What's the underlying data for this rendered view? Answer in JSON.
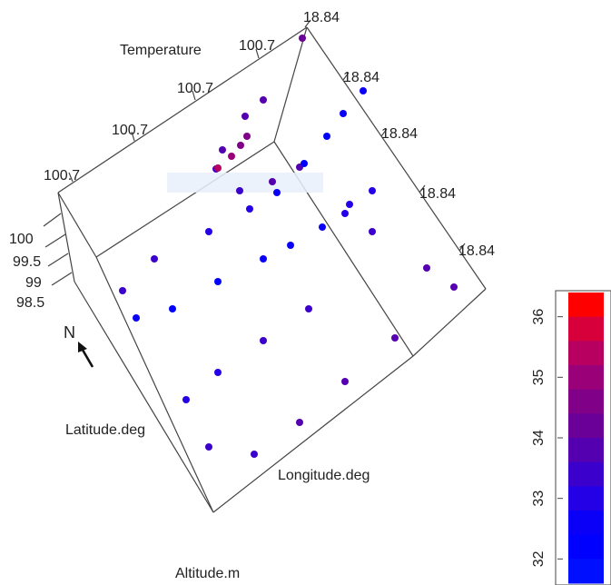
{
  "chart_data": {
    "type": "scatter",
    "title": "",
    "variables": {
      "color": "Temperature",
      "axes": [
        "Latitude.deg",
        "Longitude.deg",
        "Altitude.m"
      ]
    },
    "axis_labels": {
      "temperature": "Temperature",
      "latitude": "Latitude.deg",
      "longitude": "Longitude.deg",
      "altitude": "Altitude.m"
    },
    "temperature_ticks": [
      "100.7",
      "100.7",
      "100.7",
      "100.7"
    ],
    "longitude_ticks": [
      "18.84",
      "18.84",
      "18.84",
      "18.84",
      "18.84"
    ],
    "altitude_ticks": [
      "100",
      "99.5",
      "99",
      "98.5"
    ],
    "north_label": "N",
    "colorbar": {
      "ticks": [
        "36",
        "35",
        "34",
        "33",
        "32"
      ],
      "range": [
        31.6,
        36.4
      ],
      "colors": [
        "#ff0000",
        "#d8003a",
        "#b80060",
        "#9a0078",
        "#800088",
        "#6a0098",
        "#5500b0",
        "#3c00cc",
        "#2400e6",
        "#0a00f8",
        "#0000ff",
        "#0010ff"
      ]
    },
    "series": [
      {
        "values": [
          34.2,
          34.0,
          33.9,
          33.8,
          33.5,
          33.2,
          33.6,
          34.0
        ]
      },
      {
        "values": [
          33.4,
          33.2,
          33.0,
          32.8,
          32.5,
          32.2,
          32.1,
          32.3,
          32.6,
          33.0,
          33.5,
          34.0
        ]
      },
      {
        "values": [
          32.3,
          32.2,
          32.2,
          32.3,
          32.4,
          32.6,
          32.8,
          33.0
        ]
      },
      {
        "values": [
          35.7,
          35.2,
          34.8,
          34.5
        ]
      },
      {
        "values": [
          33.0,
          33.1,
          33.2,
          33.3,
          33.4,
          33.5,
          33.6,
          33.7,
          33.9,
          34.0
        ]
      }
    ]
  }
}
